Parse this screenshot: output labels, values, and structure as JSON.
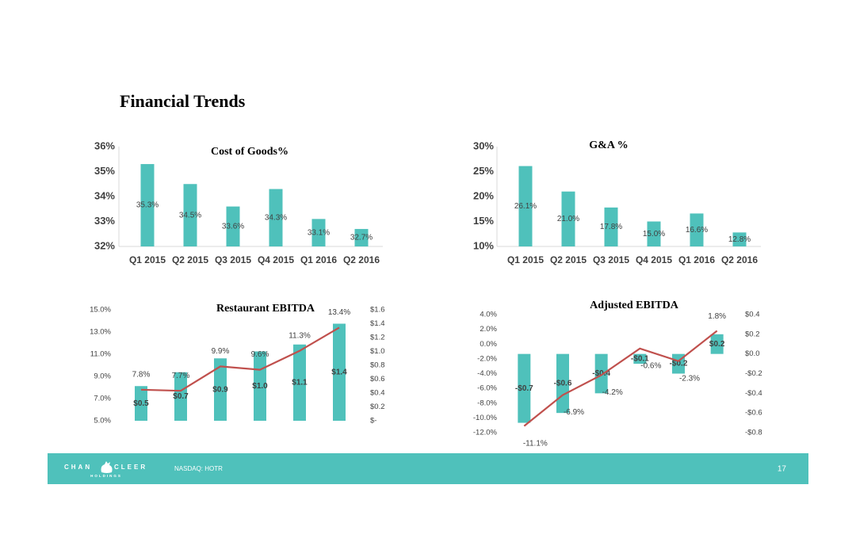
{
  "header": {
    "title": "Financial Trends"
  },
  "footer": {
    "logo_left": "CHAN",
    "logo_right": "CLEER",
    "logo_sub": "HOLDINGS",
    "ticker": "NASDAQ: HOTR",
    "page": "17"
  },
  "chart_data": [
    {
      "type": "bar",
      "title": "Cost of Goods%",
      "categories": [
        "Q1 2015",
        "Q2 2015",
        "Q3 2015",
        "Q4 2015",
        "Q1 2016",
        "Q2 2016"
      ],
      "values": [
        35.3,
        34.5,
        33.6,
        34.3,
        33.1,
        32.7
      ],
      "value_labels": [
        "35.3%",
        "34.5%",
        "33.6%",
        "34.3%",
        "33.1%",
        "32.7%"
      ],
      "color": "#4fc1bb",
      "ylim": [
        32,
        36
      ],
      "yticks": [
        {
          "value": 32,
          "label": "32%"
        },
        {
          "value": 33,
          "label": "33%"
        },
        {
          "value": 34,
          "label": "34%"
        },
        {
          "value": 35,
          "label": "35%"
        },
        {
          "value": 36,
          "label": "36%"
        }
      ],
      "grid": false
    },
    {
      "type": "bar",
      "title": "G&A  %",
      "categories": [
        "Q1 2015",
        "Q2 2015",
        "Q3 2015",
        "Q4 2015",
        "Q1 2016",
        "Q2 2016"
      ],
      "values": [
        26.1,
        21.0,
        17.8,
        15.0,
        16.6,
        12.8
      ],
      "value_labels": [
        "26.1%",
        "21.0%",
        "17.8%",
        "15.0%",
        "16.6%",
        "12.8%"
      ],
      "color": "#4fc1bb",
      "ylim": [
        10,
        30
      ],
      "yticks": [
        {
          "value": 10,
          "label": "10%"
        },
        {
          "value": 15,
          "label": "15%"
        },
        {
          "value": 20,
          "label": "20%"
        },
        {
          "value": 25,
          "label": "25%"
        },
        {
          "value": 30,
          "label": "30%"
        }
      ],
      "grid": false
    },
    {
      "type": "combo",
      "title": "Restaurant EBITDA",
      "categories": [
        null,
        null,
        null,
        null,
        null,
        null
      ],
      "series": [
        {
          "type": "bar",
          "axis": "y2",
          "color": "#4fc1bb",
          "values": [
            0.5,
            0.7,
            0.9,
            1.0,
            1.1,
            1.4
          ],
          "value_labels": [
            "$0.5",
            "$0.7",
            "$0.9",
            "$1.0",
            "$1.1",
            "$1.4"
          ]
        },
        {
          "type": "line",
          "color": "#c0504d",
          "values": [
            7.8,
            7.7,
            9.9,
            9.6,
            11.3,
            13.4
          ],
          "value_labels": [
            "7.8%",
            "7.7%",
            "9.9%",
            "9.6%",
            "11.3%",
            "13.4%"
          ]
        }
      ],
      "ylim": [
        5,
        15
      ],
      "yticks": [
        {
          "value": 5,
          "label": "5.0%"
        },
        {
          "value": 7,
          "label": "7.0%"
        },
        {
          "value": 9,
          "label": "9.0%"
        },
        {
          "value": 11,
          "label": "11.0%"
        },
        {
          "value": 13,
          "label": "13.0%"
        },
        {
          "value": 15,
          "label": "15.0%"
        }
      ],
      "y2lim": [
        0,
        1.6
      ],
      "y2ticks": [
        {
          "value": 0,
          "label": "$-"
        },
        {
          "value": 0.2,
          "label": "$0.2"
        },
        {
          "value": 0.4,
          "label": "$0.4"
        },
        {
          "value": 0.6,
          "label": "$0.6"
        },
        {
          "value": 0.8,
          "label": "$0.8"
        },
        {
          "value": 1.0,
          "label": "$1.0"
        },
        {
          "value": 1.2,
          "label": "$1.2"
        },
        {
          "value": 1.4,
          "label": "$1.4"
        },
        {
          "value": 1.6,
          "label": "$1.6"
        }
      ],
      "grid": false
    },
    {
      "type": "combo",
      "title": "Adjusted EBITDA",
      "categories": [
        null,
        null,
        null,
        null,
        null,
        null
      ],
      "series": [
        {
          "type": "bar",
          "axis": "y2",
          "color": "#4fc1bb",
          "values": [
            -0.7,
            -0.6,
            -0.4,
            -0.1,
            -0.2,
            0.2
          ],
          "value_labels": [
            "-$0.7",
            "-$0.6",
            "-$0.4",
            "-$0.1",
            "-$0.2",
            "$0.2"
          ]
        },
        {
          "type": "line",
          "color": "#c0504d",
          "values": [
            -11.1,
            -6.9,
            -4.2,
            -0.6,
            -2.3,
            1.8
          ],
          "value_labels": [
            "-11.1%",
            "-6.9%",
            "-4.2%",
            "-0.6%",
            "-2.3%",
            "1.8%"
          ]
        }
      ],
      "ylim": [
        -12,
        4
      ],
      "yticks": [
        {
          "value": -12,
          "label": "-12.0%"
        },
        {
          "value": -10,
          "label": "-10.0%"
        },
        {
          "value": -8,
          "label": "-8.0%"
        },
        {
          "value": -6,
          "label": "-6.0%"
        },
        {
          "value": -4,
          "label": "-4.0%"
        },
        {
          "value": -2,
          "label": "-2.0%"
        },
        {
          "value": 0,
          "label": "0.0%"
        },
        {
          "value": 2,
          "label": "2.0%"
        },
        {
          "value": 4,
          "label": "4.0%"
        }
      ],
      "y2lim": [
        -0.8,
        0.4
      ],
      "y2ticks": [
        {
          "value": -0.8,
          "label": "-$0.8"
        },
        {
          "value": -0.6,
          "label": "-$0.6"
        },
        {
          "value": -0.4,
          "label": "-$0.4"
        },
        {
          "value": -0.2,
          "label": "-$0.2"
        },
        {
          "value": 0,
          "label": "$0.0"
        },
        {
          "value": 0.2,
          "label": "$0.2"
        },
        {
          "value": 0.4,
          "label": "$0.4"
        }
      ],
      "grid": false
    }
  ]
}
